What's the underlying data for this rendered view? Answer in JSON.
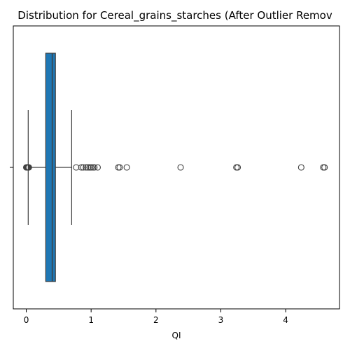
{
  "chart_data": {
    "type": "box",
    "title": "Distribution for Cereal_grains_starches (After Outlier Remov",
    "xlabel": "QI",
    "ylabel": "",
    "xlim": [
      -0.2,
      4.83
    ],
    "xticks": [
      0,
      1,
      2,
      3,
      4
    ],
    "box_color": "#1f77b4",
    "box": {
      "q1": 0.3,
      "median": 0.4,
      "q3": 0.45,
      "whisker_low": 0.03,
      "whisker_high": 0.7
    },
    "outliers": [
      0.0,
      0.01,
      0.02,
      0.03,
      0.04,
      0.77,
      0.85,
      0.88,
      0.92,
      0.95,
      0.98,
      1.0,
      1.03,
      1.05,
      1.1,
      1.42,
      1.44,
      1.55,
      2.38,
      3.24,
      3.26,
      4.24,
      4.58,
      4.6
    ]
  }
}
